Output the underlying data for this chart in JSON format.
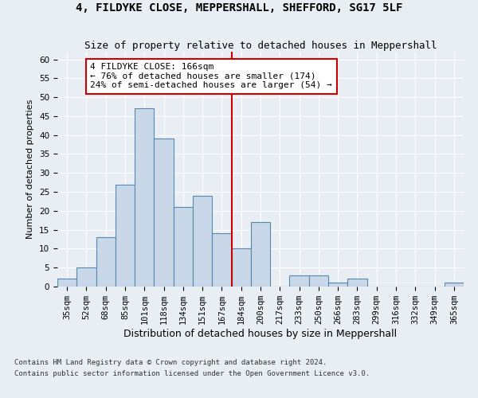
{
  "title1": "4, FILDYKE CLOSE, MEPPERSHALL, SHEFFORD, SG17 5LF",
  "title2": "Size of property relative to detached houses in Meppershall",
  "xlabel": "Distribution of detached houses by size in Meppershall",
  "ylabel": "Number of detached properties",
  "footnote1": "Contains HM Land Registry data © Crown copyright and database right 2024.",
  "footnote2": "Contains public sector information licensed under the Open Government Licence v3.0.",
  "bin_labels": [
    "35sqm",
    "52sqm",
    "68sqm",
    "85sqm",
    "101sqm",
    "118sqm",
    "134sqm",
    "151sqm",
    "167sqm",
    "184sqm",
    "200sqm",
    "217sqm",
    "233sqm",
    "250sqm",
    "266sqm",
    "283sqm",
    "299sqm",
    "316sqm",
    "332sqm",
    "349sqm",
    "365sqm"
  ],
  "bar_values": [
    2,
    5,
    13,
    27,
    47,
    39,
    21,
    24,
    14,
    10,
    17,
    0,
    3,
    3,
    1,
    2,
    0,
    0,
    0,
    0,
    1
  ],
  "bar_color": "#c8d8e8",
  "bar_edge_color": "#5588aa",
  "vline_color": "#cc0000",
  "vline_position": 8.5,
  "annotation_text": "4 FILDYKE CLOSE: 166sqm\n← 76% of detached houses are smaller (174)\n24% of semi-detached houses are larger (54) →",
  "annotation_box_color": "#ffffff",
  "annotation_border_color": "#cc0000",
  "ylim": [
    0,
    62
  ],
  "yticks": [
    0,
    5,
    10,
    15,
    20,
    25,
    30,
    35,
    40,
    45,
    50,
    55,
    60
  ],
  "background_color": "#e8eef4",
  "grid_color": "#ffffff",
  "title1_fontsize": 10,
  "title2_fontsize": 9,
  "xlabel_fontsize": 9,
  "ylabel_fontsize": 8,
  "tick_fontsize": 7.5,
  "annotation_fontsize": 8
}
